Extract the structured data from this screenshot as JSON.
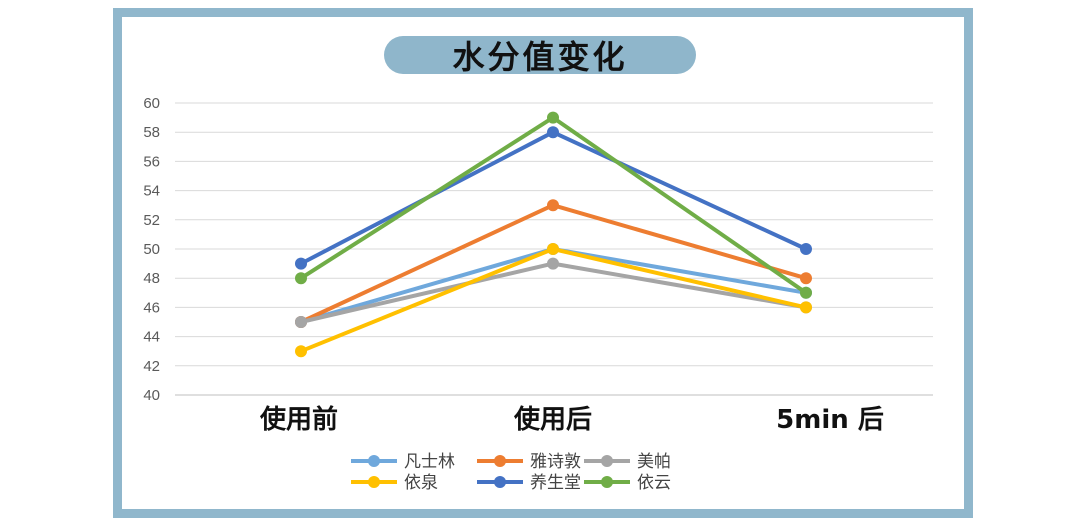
{
  "title": "水分值变化",
  "chart_data": {
    "type": "line",
    "title": "水分值变化",
    "categories": [
      "使用前",
      "使用后",
      "5min 后"
    ],
    "ylim": [
      40,
      60
    ],
    "yticks": [
      40,
      42,
      44,
      46,
      48,
      50,
      52,
      54,
      56,
      58,
      60
    ],
    "grid": true,
    "legend_position": "bottom",
    "series": [
      {
        "name": "凡士林",
        "color": "#6fa8dc",
        "values": [
          45,
          50,
          47
        ]
      },
      {
        "name": "雅诗敦",
        "color": "#ed7d31",
        "values": [
          45,
          53,
          48
        ]
      },
      {
        "name": "美帕",
        "color": "#a5a5a5",
        "values": [
          45,
          49,
          46
        ]
      },
      {
        "name": "依泉",
        "color": "#ffc000",
        "values": [
          43,
          50,
          46
        ]
      },
      {
        "name": "养生堂",
        "color": "#4472c4",
        "values": [
          49,
          58,
          50
        ]
      },
      {
        "name": "依云",
        "color": "#70ad47",
        "values": [
          48,
          59,
          47
        ]
      }
    ]
  }
}
